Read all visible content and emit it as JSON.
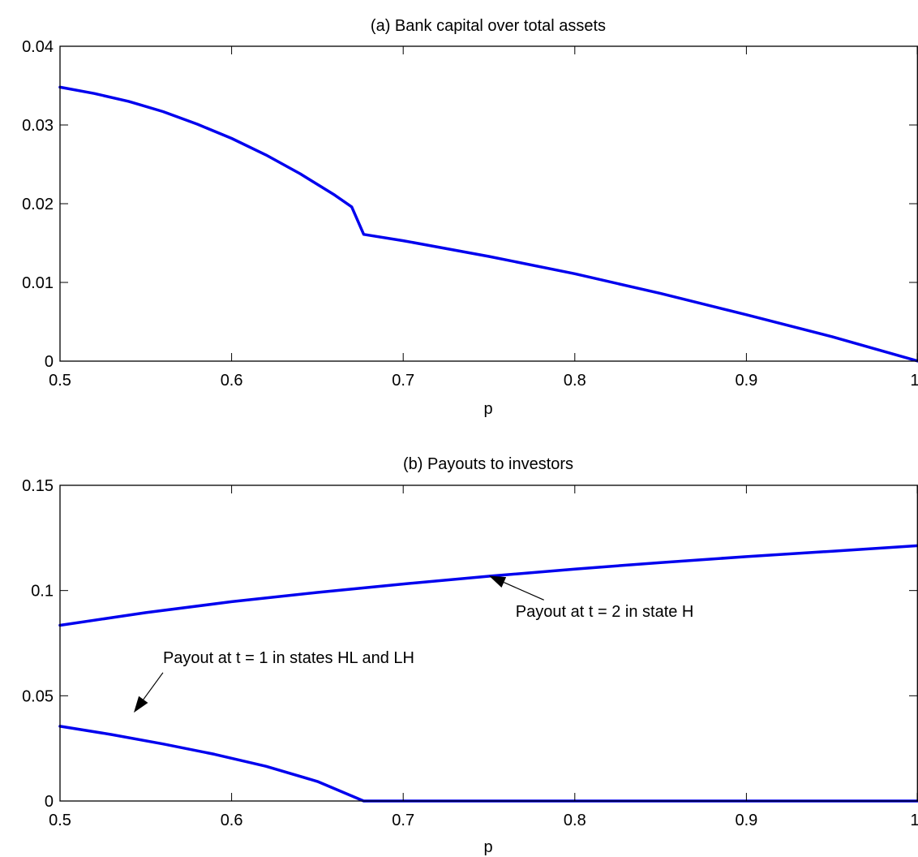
{
  "chart_data": [
    {
      "type": "line",
      "title": "(a) Bank capital over total assets",
      "xlabel": "p",
      "ylabel": "",
      "xlim": [
        0.5,
        1.0
      ],
      "ylim": [
        0,
        0.04
      ],
      "xticks": [
        0.5,
        0.6,
        0.7,
        0.8,
        0.9,
        1.0
      ],
      "xtick_labels": [
        "0.5",
        "0.6",
        "0.7",
        "0.8",
        "0.9",
        "1"
      ],
      "yticks": [
        0,
        0.01,
        0.02,
        0.03,
        0.04
      ],
      "ytick_labels": [
        "0",
        "0.01",
        "0.02",
        "0.03",
        "0.04"
      ],
      "grid": false,
      "color": "#0000ee",
      "series": [
        {
          "x": [
            0.5,
            0.52,
            0.54,
            0.56,
            0.58,
            0.6,
            0.62,
            0.64,
            0.66,
            0.67,
            0.677,
            0.7,
            0.75,
            0.8,
            0.85,
            0.9,
            0.95,
            1.0
          ],
          "y": [
            0.0348,
            0.034,
            0.033,
            0.0317,
            0.0301,
            0.0283,
            0.0262,
            0.0238,
            0.0211,
            0.0196,
            0.0161,
            0.0153,
            0.0133,
            0.0111,
            0.0086,
            0.0059,
            0.0031,
            0.0
          ]
        }
      ],
      "annotations": []
    },
    {
      "type": "line",
      "title": "(b) Payouts to investors",
      "xlabel": "p",
      "ylabel": "",
      "xlim": [
        0.5,
        1.0
      ],
      "ylim": [
        0,
        0.15
      ],
      "xticks": [
        0.5,
        0.6,
        0.7,
        0.8,
        0.9,
        1.0
      ],
      "xtick_labels": [
        "0.5",
        "0.6",
        "0.7",
        "0.8",
        "0.9",
        "1"
      ],
      "yticks": [
        0,
        0.05,
        0.1,
        0.15
      ],
      "ytick_labels": [
        "0",
        "0.05",
        "0.1",
        "0.15"
      ],
      "grid": false,
      "color": "#0000ee",
      "series": [
        {
          "x": [
            0.5,
            0.55,
            0.6,
            0.65,
            0.7,
            0.75,
            0.8,
            0.85,
            0.9,
            0.95,
            1.0
          ],
          "y": [
            0.0835,
            0.0895,
            0.0947,
            0.0991,
            0.1031,
            0.1068,
            0.1102,
            0.1133,
            0.1161,
            0.1187,
            0.1213
          ]
        },
        {
          "x": [
            0.5,
            0.53,
            0.56,
            0.59,
            0.62,
            0.65,
            0.677,
            0.7,
            0.8,
            0.9,
            1.0
          ],
          "y": [
            0.0355,
            0.0316,
            0.0271,
            0.0222,
            0.0165,
            0.0093,
            0.0,
            0.0,
            0.0,
            0.0,
            0.0
          ]
        }
      ],
      "annotations": [
        {
          "text": "Payout at t = 2 in state H",
          "x": 0.7655,
          "y": 0.0875,
          "arrow_tail": [
            0.782,
            0.0955
          ],
          "arrow_head": [
            0.75,
            0.107
          ]
        },
        {
          "text": "Payout at t = 1 in states HL and LH",
          "x": 0.56,
          "y": 0.0655,
          "arrow_tail": [
            0.56,
            0.061
          ],
          "arrow_head": [
            0.543,
            0.042
          ]
        }
      ]
    }
  ]
}
